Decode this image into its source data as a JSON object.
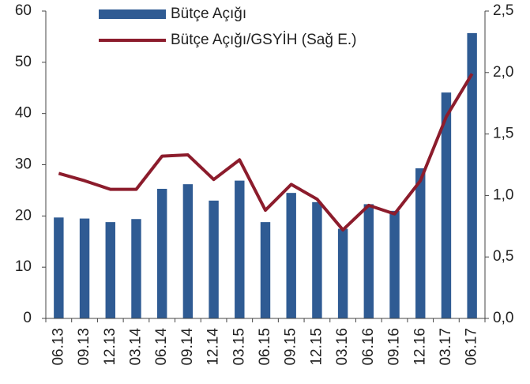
{
  "chart_data": {
    "type": "bar_line",
    "categories": [
      "06.13",
      "09.13",
      "12.13",
      "03.14",
      "06.14",
      "09.14",
      "12.14",
      "03.15",
      "06.15",
      "09.15",
      "12.15",
      "03.16",
      "06.16",
      "09.16",
      "12.16",
      "03.17",
      "06.17"
    ],
    "series": [
      {
        "name": "Bütçe Açığı",
        "type": "bar",
        "color": "#2f5b93",
        "values": [
          19.7,
          19.5,
          18.8,
          19.4,
          25.3,
          26.2,
          23.0,
          26.9,
          18.8,
          24.5,
          22.7,
          17.5,
          22.3,
          21.0,
          29.3,
          44.1,
          55.7
        ]
      },
      {
        "name": "Bütçe Açığı/GSYİH (Sağ E.)",
        "type": "line",
        "axis": "y2",
        "color": "#8c1c2c",
        "values": [
          1.18,
          1.12,
          1.05,
          1.05,
          1.32,
          1.33,
          1.13,
          1.29,
          0.88,
          1.09,
          0.97,
          0.72,
          0.92,
          0.85,
          1.12,
          1.64,
          1.99
        ]
      }
    ],
    "ylim": [
      0,
      60
    ],
    "yticks": [
      0,
      10,
      20,
      30,
      40,
      50,
      60
    ],
    "y2lim": [
      0,
      2.5
    ],
    "y2ticks": [
      {
        "value": 0,
        "label": "0,0"
      },
      {
        "value": 0.5,
        "label": "0,5"
      },
      {
        "value": 1,
        "label": "1,0"
      },
      {
        "value": 1.5,
        "label": "1,5"
      },
      {
        "value": 2,
        "label": "2,0"
      },
      {
        "value": 2.5,
        "label": "2,5"
      }
    ],
    "grid": false
  }
}
